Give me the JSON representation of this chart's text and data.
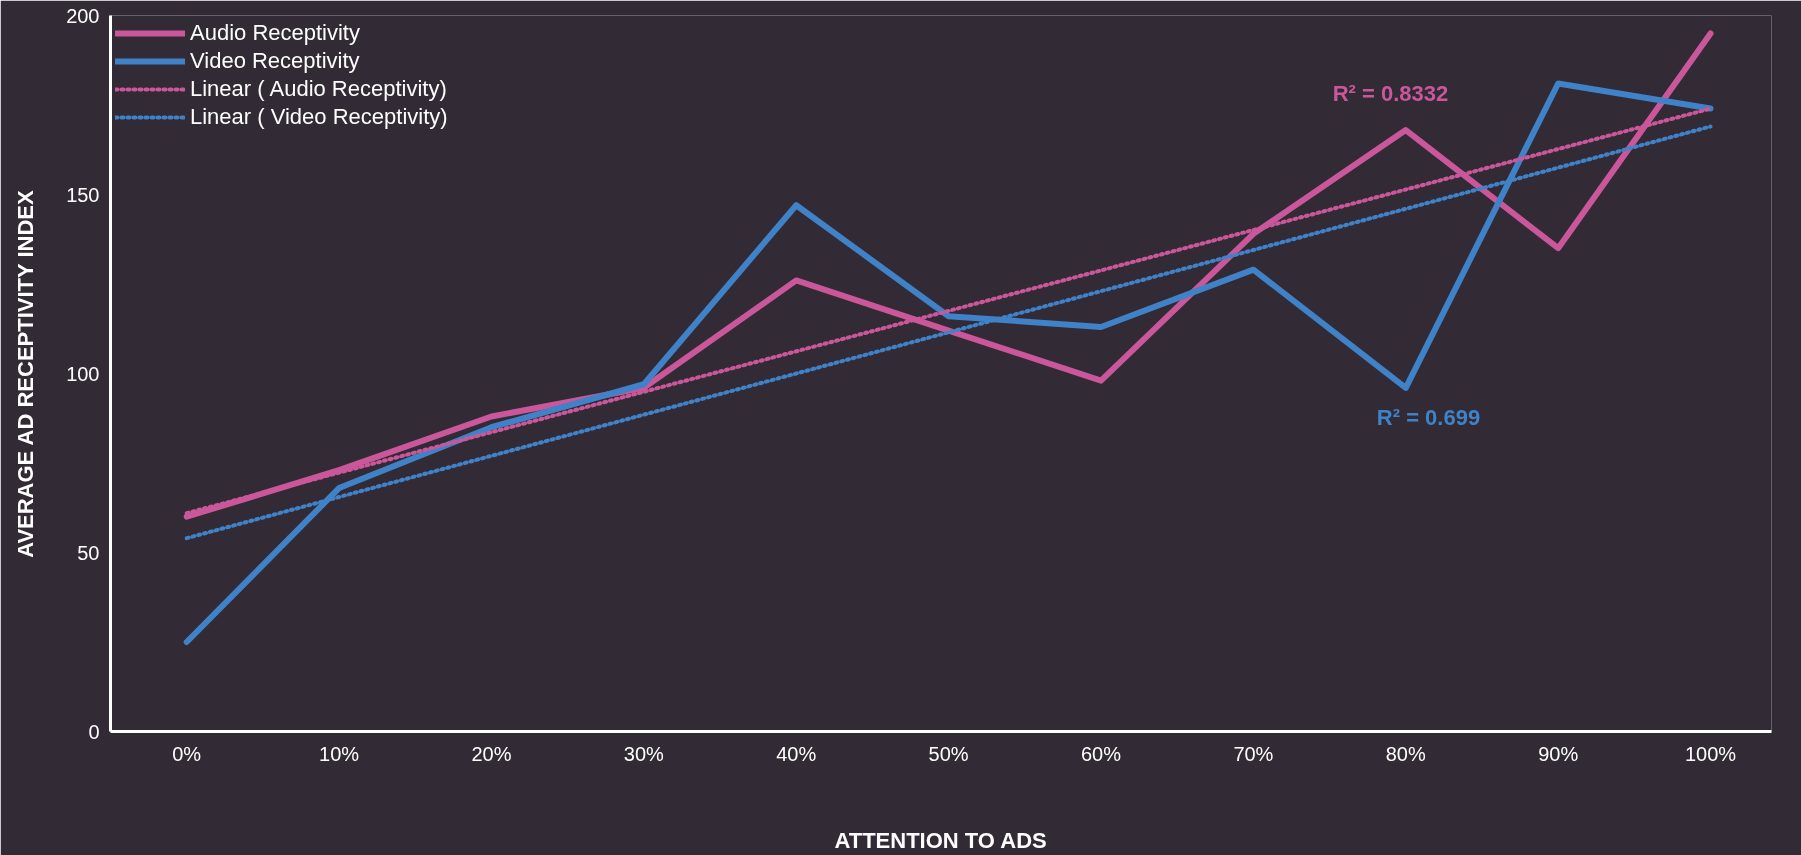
{
  "chart_data": {
    "type": "line",
    "xlabel": "ATTENTION TO ADS",
    "ylabel": "AVERAGE AD RECEPTIVITY INDEX",
    "x": [
      0,
      10,
      20,
      30,
      40,
      50,
      60,
      70,
      80,
      90,
      100
    ],
    "xlim": [
      -5,
      104
    ],
    "ylim": [
      0,
      200
    ],
    "xticks": [
      {
        "value": 0,
        "label": "0%"
      },
      {
        "value": 10,
        "label": "10%"
      },
      {
        "value": 20,
        "label": "20%"
      },
      {
        "value": 30,
        "label": "30%"
      },
      {
        "value": 40,
        "label": "40%"
      },
      {
        "value": 50,
        "label": "50%"
      },
      {
        "value": 60,
        "label": "60%"
      },
      {
        "value": 70,
        "label": "70%"
      },
      {
        "value": 80,
        "label": "80%"
      },
      {
        "value": 90,
        "label": "90%"
      },
      {
        "value": 100,
        "label": "100%"
      }
    ],
    "yticks": [
      0,
      50,
      100,
      150,
      200
    ],
    "series": [
      {
        "name": "Audio Receptivity",
        "color": "#c9579a",
        "values": [
          60,
          73,
          88,
          96,
          126,
          112,
          98,
          139,
          168,
          135,
          195
        ]
      },
      {
        "name": "Video Receptivity",
        "color": "#3f82c7",
        "values": [
          25,
          68,
          85,
          97,
          147,
          116,
          113,
          129,
          96,
          181,
          174
        ]
      },
      {
        "name": "Linear ( Audio Receptivity)",
        "color": "#c9579a",
        "values": [
          61,
          72.3,
          83.6,
          94.9,
          106.2,
          117.5,
          128.8,
          140.1,
          151.4,
          162.7,
          174
        ],
        "line_style": "dotted"
      },
      {
        "name": "Linear ( Video Receptivity)",
        "color": "#3f82c7",
        "values": [
          54,
          65.5,
          77,
          88.5,
          100,
          111.5,
          123,
          134.5,
          146,
          157.5,
          169
        ],
        "line_style": "dotted"
      }
    ],
    "annotations": [
      "R² = 0.8332",
      "R² = 0.699"
    ],
    "legend": "top left",
    "grid": false,
    "marker": "none",
    "line_style": "solid"
  }
}
